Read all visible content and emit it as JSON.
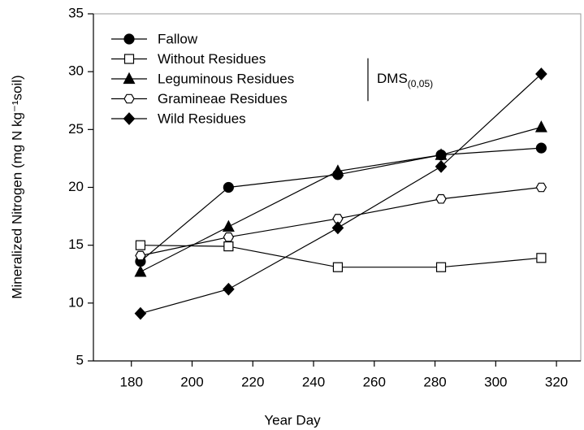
{
  "chart_data": {
    "type": "line",
    "xlabel": "Year Day",
    "ylabel": "Mineralized Nitrogen (mg N kg⁻¹soil)",
    "x": [
      183,
      212,
      248,
      282,
      315
    ],
    "series": [
      {
        "name": "Fallow",
        "color": "#000000",
        "marker": "circle",
        "filled": true,
        "values": [
          13.6,
          20.0,
          21.1,
          22.8,
          23.4
        ]
      },
      {
        "name": "Without Residues",
        "color": "#000000",
        "marker": "square",
        "filled": false,
        "values": [
          15.0,
          14.9,
          13.1,
          13.1,
          13.9
        ]
      },
      {
        "name": "Leguminous Residues",
        "color": "#000000",
        "marker": "triangle",
        "filled": true,
        "values": [
          12.7,
          16.6,
          21.4,
          22.8,
          25.2
        ]
      },
      {
        "name": "Gramineae Residues",
        "color": "#000000",
        "marker": "hexagon",
        "filled": false,
        "values": [
          14.1,
          15.7,
          17.3,
          19.0,
          20.0
        ]
      },
      {
        "name": "Wild Residues",
        "color": "#000000",
        "marker": "diamond",
        "filled": true,
        "values": [
          9.1,
          11.2,
          16.5,
          21.8,
          29.8
        ]
      }
    ],
    "annotation": {
      "text": "DMS",
      "subscript": "(0,05)",
      "value": 3.7
    },
    "xlim": [
      167.5,
      328
    ],
    "xticks": [
      180,
      200,
      220,
      240,
      260,
      280,
      300,
      320
    ],
    "ylim": [
      5,
      35
    ],
    "yticks": [
      5,
      10,
      15,
      20,
      25,
      30,
      35
    ],
    "legend": "upper left",
    "grid": false
  }
}
